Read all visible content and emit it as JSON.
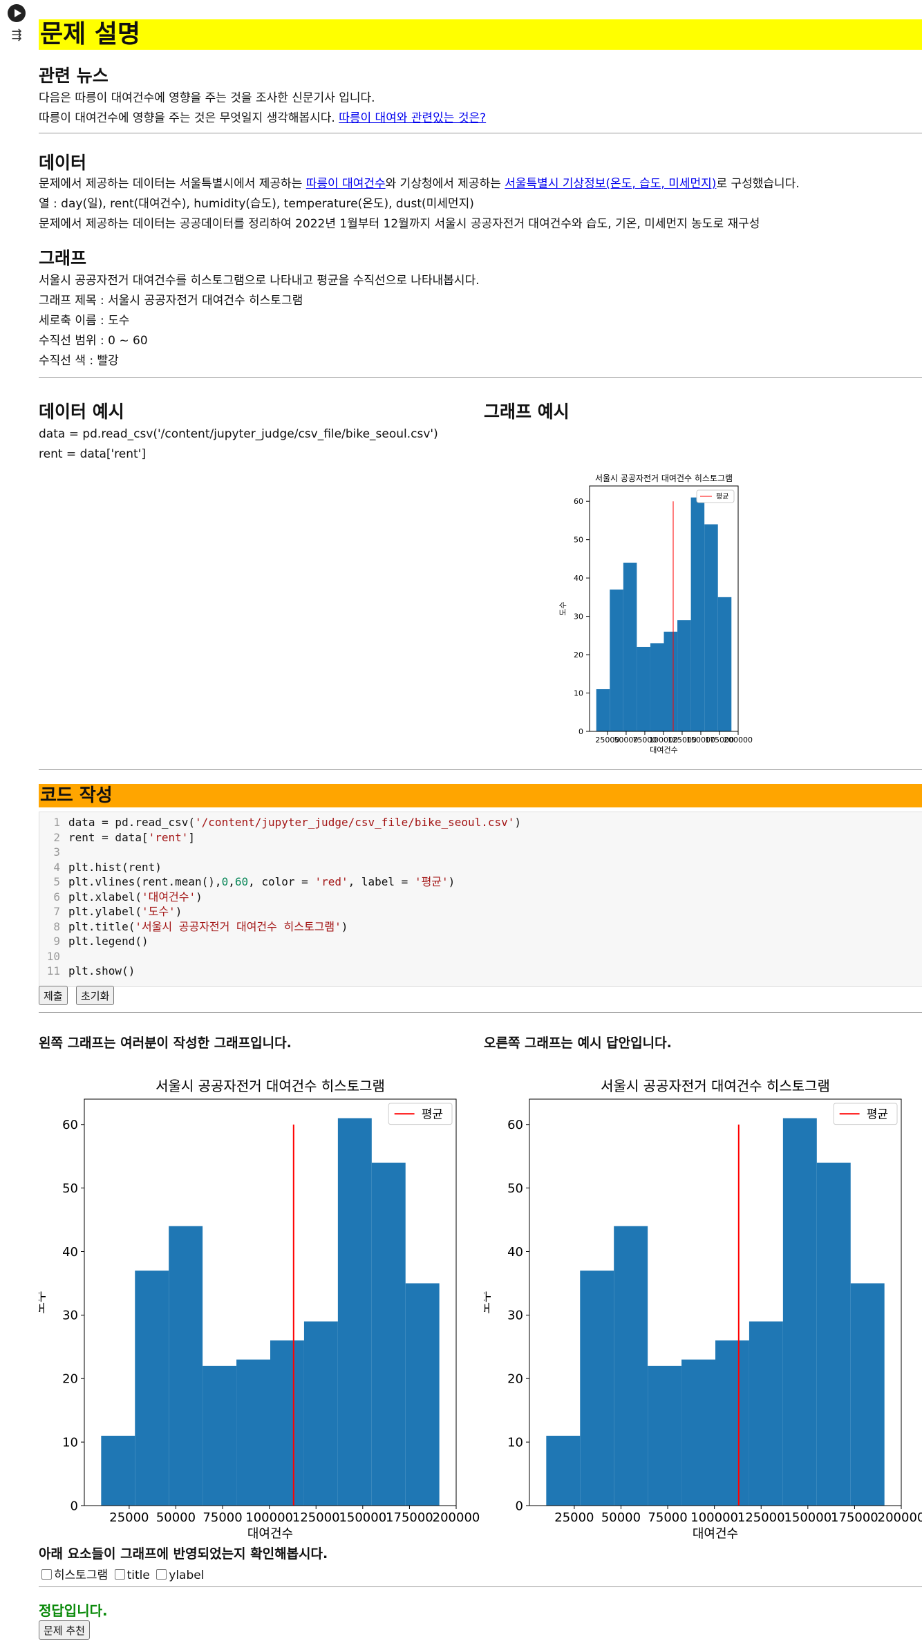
{
  "header": {
    "title": "문제 설명"
  },
  "news": {
    "heading": "관련 뉴스",
    "line1": "다음은 따릉이 대여건수에 영향을 주는 것을 조사한 신문기사 입니다.",
    "line2_text": "따릉이 대여건수에 영향을 주는 것은 무엇일지 생각해봅시다.",
    "line2_link": "따릉이 대여와 관련있는 것은?"
  },
  "data_section": {
    "heading": "데이터",
    "l1_a": "문제에서 제공하는 데이터는 서울특별시에서 제공하는",
    "l1_link1": "따릉이 대여건수",
    "l1_b": "와 기상청에서 제공하는",
    "l1_link2": "서울특별시 기상정보(온도, 습도, 미세먼지)",
    "l1_c": "로 구성했습니다.",
    "l2": "열 : day(일), rent(대여건수), humidity(습도), temperature(온도), dust(미세먼지)",
    "l3": "문제에서 제공하는 데이터는 공공데이터를 정리하여 2022년 1월부터 12월까지 서울시 공공자전거 대여건수와 습도, 기온, 미세먼지 농도로 재구성"
  },
  "graph_section": {
    "heading": "그래프",
    "l1": "서울시 공공자전거 대여건수를 히스토그램으로 나타내고 평균을 수직선으로 나타내봅시다.",
    "l2": "그래프 제목 : 서울시 공공자전거 대여건수 히스토그램",
    "l3": "세로축 이름 : 도수",
    "l4": "수직선 범위 : 0 ~ 60",
    "l5": "수직선 색 : 빨강"
  },
  "example": {
    "data_heading": "데이터 예시",
    "code1": "data = pd.read_csv('/content/jupyter_judge/csv_file/bike_seoul.csv')",
    "code2": "rent = data['rent']",
    "graph_heading": "그래프 예시"
  },
  "code_section": {
    "heading": "코드 작성",
    "line_numbers": [
      "1",
      "2",
      "3",
      "4",
      "5",
      "6",
      "7",
      "8",
      "9",
      "10",
      "11"
    ],
    "submit_label": "제출",
    "reset_label": "초기화"
  },
  "results": {
    "left_caption": "왼쪽 그래프는 여러분이 작성한 그래프입니다.",
    "right_caption": "오른쪽 그래프는 예시 답안입니다.",
    "check_prompt": "아래 요소들이 그래프에 반영되었는지 확인해봅시다.",
    "check_items": [
      "히스토그램",
      "title",
      "ylabel"
    ],
    "status": "정답입니다.",
    "recommend_label": "문제 추천"
  },
  "colors": {
    "bar": "#1f77b4",
    "vline": "#ff0000",
    "highlight": "#ffff00",
    "code_header": "#ffa500",
    "correct": "#0a8a0a"
  },
  "chart_data": {
    "type": "bar",
    "title": "서울시 공공자전거 대여건수 히스토그램",
    "xlabel": "대여건수",
    "ylabel": "도수",
    "legend": [
      "평균"
    ],
    "legend_position": "top-right",
    "bin_edges": [
      10000,
      28100,
      46200,
      64300,
      82400,
      100500,
      118600,
      136700,
      154800,
      172900,
      191000
    ],
    "counts": [
      11,
      37,
      44,
      22,
      23,
      26,
      29,
      61,
      54,
      35
    ],
    "xticks": [
      25000,
      50000,
      75000,
      100000,
      125000,
      150000,
      175000,
      200000
    ],
    "yticks": [
      0,
      10,
      20,
      30,
      40,
      50,
      60
    ],
    "xlim": [
      1000,
      200000
    ],
    "ylim": [
      0,
      64
    ],
    "mean_vline": {
      "x": 113000,
      "ymin": 0,
      "ymax": 60
    }
  }
}
